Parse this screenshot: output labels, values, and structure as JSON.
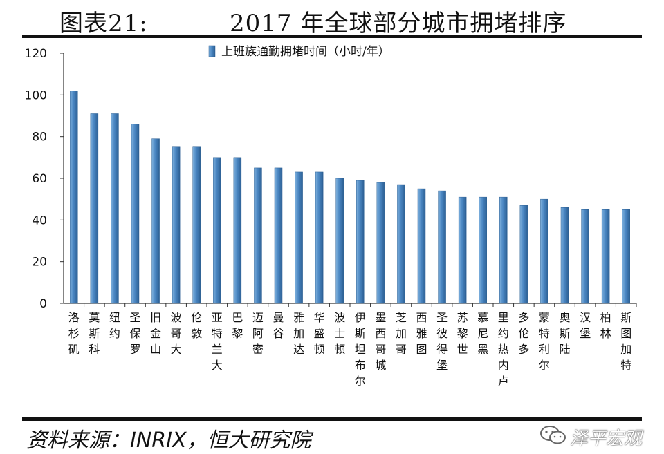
{
  "header": {
    "figure_number": "图表21:",
    "title": "2017 年全球部分城市拥堵排序"
  },
  "footer": {
    "source": "资料来源：INRIX，恒大研究院",
    "watermark": "泽平宏观",
    "watermark_icon": "wechat-icon"
  },
  "colors": {
    "bar": "#4a86c2",
    "bar_dark": "#2c5f93",
    "axis": "#333333"
  },
  "chart_data": {
    "type": "bar",
    "series": [
      {
        "name": "上班族通勤拥堵时间（小时/年）",
        "values": [
          102,
          91,
          91,
          86,
          79,
          75,
          75,
          70,
          70,
          65,
          65,
          63,
          63,
          60,
          59,
          58,
          57,
          55,
          54,
          51,
          51,
          51,
          47,
          50,
          46,
          45,
          45,
          45
        ]
      }
    ],
    "categories": [
      "洛杉矶",
      "莫斯科",
      "纽约",
      "圣保罗",
      "旧金山",
      "波哥大",
      "伦敦",
      "亚特兰大",
      "巴黎",
      "迈阿密",
      "曼谷",
      "雅加达",
      "华盛顿",
      "波士顿",
      "伊斯坦布尔",
      "墨西哥城",
      "芝加哥",
      "西雅图",
      "圣彼得堡",
      "苏黎世",
      "慕尼黑",
      "里约热内卢",
      "多伦多",
      "蒙特利尔",
      "奥斯陆",
      "汉堡",
      "柏林",
      "斯图加特"
    ],
    "yticks": [
      "0",
      "20",
      "40",
      "60",
      "80",
      "100",
      "120"
    ],
    "ylim": [
      0,
      120
    ],
    "legend_position": "top-center",
    "grid": false
  }
}
